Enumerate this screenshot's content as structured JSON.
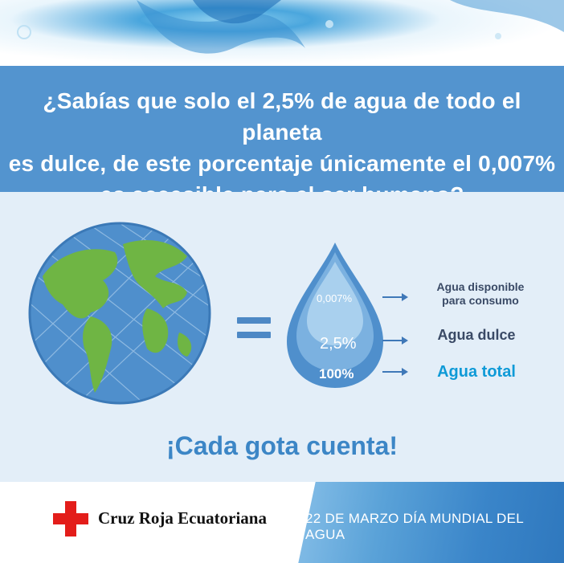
{
  "header": {
    "line1": "¿Sabías que solo el 2,5% de agua de todo el planeta",
    "line2": "es dulce, de este porcentaje únicamente el 0,007%",
    "line3": "es accesible para el ser humano?"
  },
  "drop": {
    "inner_pct": "0,007%",
    "middle_pct": "2,5%",
    "outer_pct": "100%"
  },
  "legend": {
    "consumo_line1": "Agua disponible",
    "consumo_line2": "para consumo",
    "dulce": "Agua dulce",
    "total": "Agua total"
  },
  "tagline": "¡Cada gota cuenta!",
  "footer": {
    "org_name": "Cruz Roja Ecuatoriana",
    "date_text": "22 DE MARZO DÍA MUNDIAL DEL AGUA"
  },
  "icons": [
    "water-splash-icon",
    "globe-icon",
    "equals-icon",
    "water-drop-icon",
    "arrow-right-icon",
    "red-cross-icon"
  ],
  "colors": {
    "banner": "#5394cf",
    "background": "#e3eef8",
    "accent_blue": "#0e9ad7",
    "tagline": "#3c86c6",
    "red_cross": "#e31d1a",
    "land_green": "#6fb544"
  }
}
